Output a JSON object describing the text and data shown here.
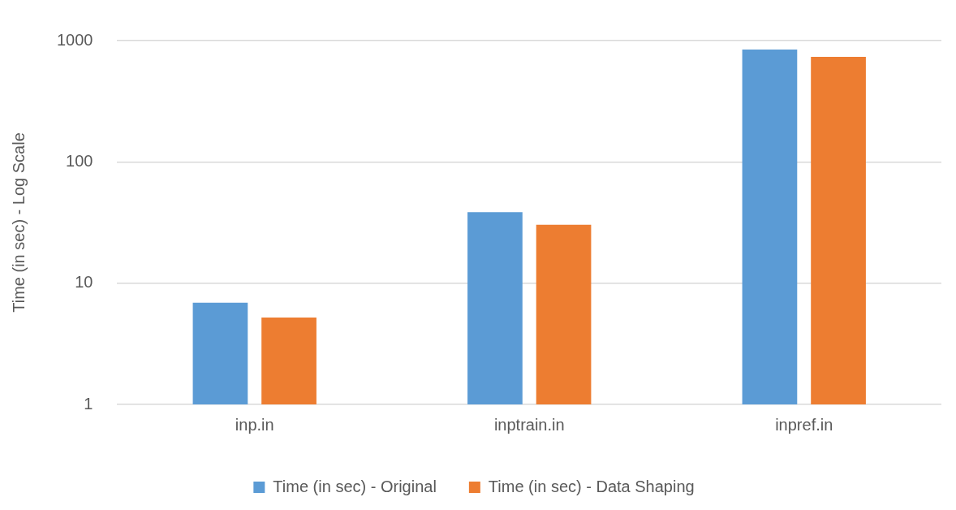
{
  "chart_data": {
    "type": "bar",
    "ylabel": "Time (in sec) - Log Scale",
    "categories": [
      "inp.in",
      "inptrain.in",
      "inpref.in"
    ],
    "series": [
      {
        "name": "Time (in sec) - Original",
        "color": "#5b9bd5",
        "values": [
          6.9,
          38.5,
          845
        ]
      },
      {
        "name": "Time (in sec) - Data Shaping",
        "color": "#ed7d31",
        "values": [
          5.2,
          30.3,
          734
        ]
      }
    ],
    "log": true,
    "ylim": [
      1,
      1000
    ],
    "yticks": [
      1,
      10,
      100,
      1000
    ],
    "grid": "y",
    "legend": "bottom"
  }
}
